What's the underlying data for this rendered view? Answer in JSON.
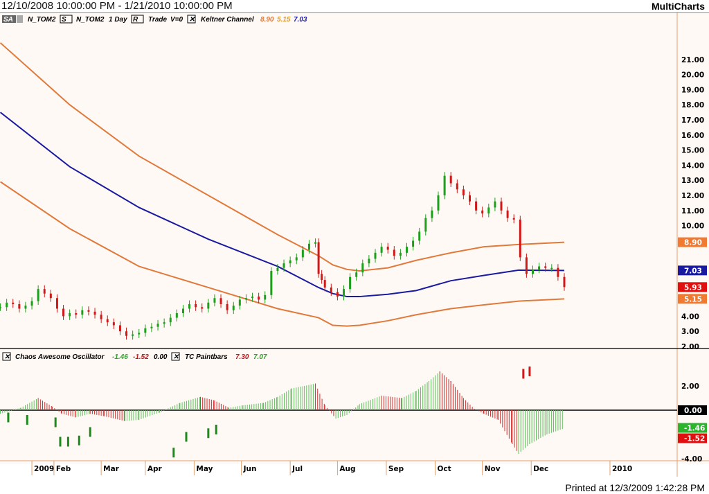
{
  "header": {
    "title": "12/10/2008 10:00:00 PM - 1/21/2010 10:00:00 PM",
    "brand": "MultiCharts"
  },
  "legend_main": {
    "sa": "SA",
    "symbol": "N_TOM2",
    "s": "S",
    "symbol2": "N_TOM2",
    "interval": "1 Day",
    "r": "R",
    "trade": "Trade",
    "volume": "V=0",
    "study": "Keltner Channel",
    "v1": "8.90",
    "v2": "5.15",
    "v3": "7.03"
  },
  "legend_osc": {
    "study": "Chaos Awesome Oscillator",
    "v1": "-1.46",
    "v2": "-1.52",
    "v3": "0.00",
    "study2": "TC Paintbars",
    "p1": "7.30",
    "p2": "7.07"
  },
  "footer": "Printed at 12/3/2009 1:42:28 PM",
  "colors": {
    "bg": "#fff9f5",
    "upper": "#e0793a",
    "mid": "#1a1aa0",
    "green": "#1aa01a",
    "red": "#d01818"
  },
  "chart_data": [
    {
      "type": "candlestick+line",
      "title": "N_TOM2 1 Day - Keltner Channel",
      "ylim": [
        2,
        22
      ],
      "yticks": [
        "21.00",
        "20.00",
        "19.00",
        "18.00",
        "17.00",
        "16.00",
        "15.00",
        "14.00",
        "13.00",
        "12.00",
        "11.00",
        "10.00",
        "4.00",
        "3.00",
        "2.00"
      ],
      "ytick_vals": [
        21,
        20,
        19,
        18,
        17,
        16,
        15,
        14,
        13,
        12,
        11,
        10,
        4,
        3,
        2
      ],
      "xticks": [
        "2009",
        "Feb",
        "Mar",
        "Apr",
        "May",
        "Jun",
        "Jul",
        "Aug",
        "Sep",
        "Oct",
        "Nov",
        "Dec",
        "2010"
      ],
      "xtick_days": [
        22,
        36,
        66,
        94,
        125,
        155,
        186,
        216,
        247,
        278,
        308,
        339,
        389
      ],
      "last_labels": [
        {
          "text": "8.90",
          "value": 8.9,
          "color": "#f07a30"
        },
        {
          "text": "7.03",
          "value": 7.03,
          "color": "#1a1aa0"
        },
        {
          "text": "5.93",
          "value": 5.93,
          "color": "#e01010"
        },
        {
          "text": "5.15",
          "value": 5.15,
          "color": "#f07a30"
        }
      ],
      "closes_day": [
        2,
        6,
        10,
        14,
        18,
        22,
        26,
        30,
        34,
        38,
        42,
        46,
        50,
        54,
        58,
        62,
        66,
        70,
        74,
        78,
        82,
        86,
        90,
        94,
        98,
        102,
        106,
        110,
        114,
        118,
        122,
        126,
        130,
        134,
        138,
        142,
        146,
        150,
        154,
        158,
        162,
        166,
        170,
        174,
        178,
        182,
        186,
        190,
        194,
        198,
        202,
        204,
        206,
        208,
        212,
        216,
        220,
        224,
        228,
        232,
        236,
        240,
        244,
        248,
        252,
        256,
        260,
        264,
        268,
        272,
        276,
        280,
        284,
        288,
        292,
        296,
        300,
        304,
        308,
        312,
        316,
        320,
        324,
        328,
        332,
        336,
        340,
        344,
        348,
        352,
        356,
        360
      ],
      "closes": [
        4.6,
        4.9,
        4.8,
        4.5,
        4.7,
        5.0,
        5.8,
        5.5,
        5.2,
        4.5,
        4.0,
        4.2,
        4.1,
        4.4,
        4.3,
        4.1,
        3.8,
        3.6,
        3.4,
        3.0,
        2.7,
        2.8,
        2.9,
        3.2,
        3.3,
        3.5,
        3.6,
        3.9,
        4.2,
        4.5,
        4.8,
        4.6,
        4.5,
        4.9,
        5.2,
        4.8,
        4.4,
        4.7,
        5.1,
        5.2,
        5.3,
        5.1,
        5.4,
        7.0,
        7.2,
        7.5,
        7.7,
        7.9,
        8.4,
        8.8,
        8.9,
        6.8,
        6.4,
        5.9,
        5.6,
        5.3,
        5.8,
        6.6,
        6.9,
        7.5,
        7.8,
        8.2,
        8.6,
        8.4,
        8.0,
        8.2,
        8.6,
        9.0,
        9.6,
        10.5,
        11.0,
        12.0,
        13.3,
        12.8,
        12.4,
        12.0,
        11.6,
        11.0,
        10.8,
        11.2,
        11.6,
        11.0,
        10.5,
        10.4,
        7.9,
        6.8,
        7.1,
        7.3,
        7.2,
        7.2,
        6.6,
        5.93
      ],
      "keltner": {
        "days": [
          2,
          46,
          90,
          134,
          178,
          204,
          213,
          222,
          230,
          248,
          266,
          288,
          309,
          331,
          360
        ],
        "upper": [
          22.1,
          18.0,
          14.6,
          12.0,
          9.4,
          8.0,
          7.4,
          7.1,
          7.0,
          7.2,
          7.7,
          8.2,
          8.6,
          8.75,
          8.9
        ],
        "middle": [
          17.5,
          13.9,
          11.2,
          9.1,
          7.3,
          5.9,
          5.5,
          5.3,
          5.3,
          5.45,
          5.7,
          6.35,
          6.7,
          7.05,
          7.03
        ],
        "lower": [
          12.9,
          9.8,
          7.3,
          5.9,
          4.5,
          3.9,
          3.4,
          3.35,
          3.4,
          3.7,
          4.1,
          4.5,
          4.75,
          5.0,
          5.15
        ]
      }
    },
    {
      "type": "histogram",
      "title": "Chaos Awesome Oscillator",
      "ylim": [
        -4,
        4
      ],
      "yticks": [
        "2.00",
        "-4.00"
      ],
      "ytick_vals": [
        2,
        -4
      ],
      "last_labels": [
        {
          "text": "0.00",
          "value": 0,
          "color": "#000000"
        },
        {
          "text": "-1.46",
          "value": -1.46,
          "color": "#2cb52c"
        },
        {
          "text": "-1.52",
          "value": -1.52,
          "color": "#e01010"
        }
      ],
      "days": [
        2,
        15,
        26,
        35,
        41,
        50,
        59,
        68,
        81,
        90,
        103,
        116,
        129,
        138,
        147,
        156,
        169,
        178,
        187,
        195,
        202,
        208,
        215,
        222,
        230,
        244,
        257,
        266,
        274,
        281,
        288,
        296,
        303,
        309,
        318,
        327,
        331,
        338,
        349,
        360
      ],
      "values": [
        -0.3,
        0.2,
        1.0,
        0.3,
        -0.3,
        -0.6,
        -0.3,
        -0.5,
        -0.9,
        -0.8,
        -0.2,
        0.6,
        1.1,
        0.8,
        0.2,
        0.4,
        0.6,
        1.1,
        1.8,
        2.0,
        2.2,
        0.4,
        -0.7,
        -0.4,
        0.5,
        1.2,
        1.0,
        1.6,
        2.4,
        3.2,
        2.4,
        1.0,
        0.1,
        -0.3,
        -0.8,
        -2.8,
        -3.6,
        -2.8,
        -2.0,
        -1.5
      ],
      "paintbars": [
        {
          "day": 7,
          "value": -0.6,
          "color": "green"
        },
        {
          "day": 19,
          "value": -0.8,
          "color": "green"
        },
        {
          "day": 37,
          "value": -1.0,
          "color": "green"
        },
        {
          "day": 40,
          "value": -2.6,
          "color": "green"
        },
        {
          "day": 45,
          "value": -2.6,
          "color": "green"
        },
        {
          "day": 52,
          "value": -2.5,
          "color": "green"
        },
        {
          "day": 59,
          "value": -1.8,
          "color": "green"
        },
        {
          "day": 112,
          "value": -3.5,
          "color": "green"
        },
        {
          "day": 120,
          "value": -2.2,
          "color": "green"
        },
        {
          "day": 134,
          "value": -1.9,
          "color": "green"
        },
        {
          "day": 139,
          "value": -1.6,
          "color": "green"
        },
        {
          "day": 334,
          "value": 3.0,
          "color": "red"
        },
        {
          "day": 338,
          "value": 3.2,
          "color": "red"
        }
      ]
    }
  ]
}
